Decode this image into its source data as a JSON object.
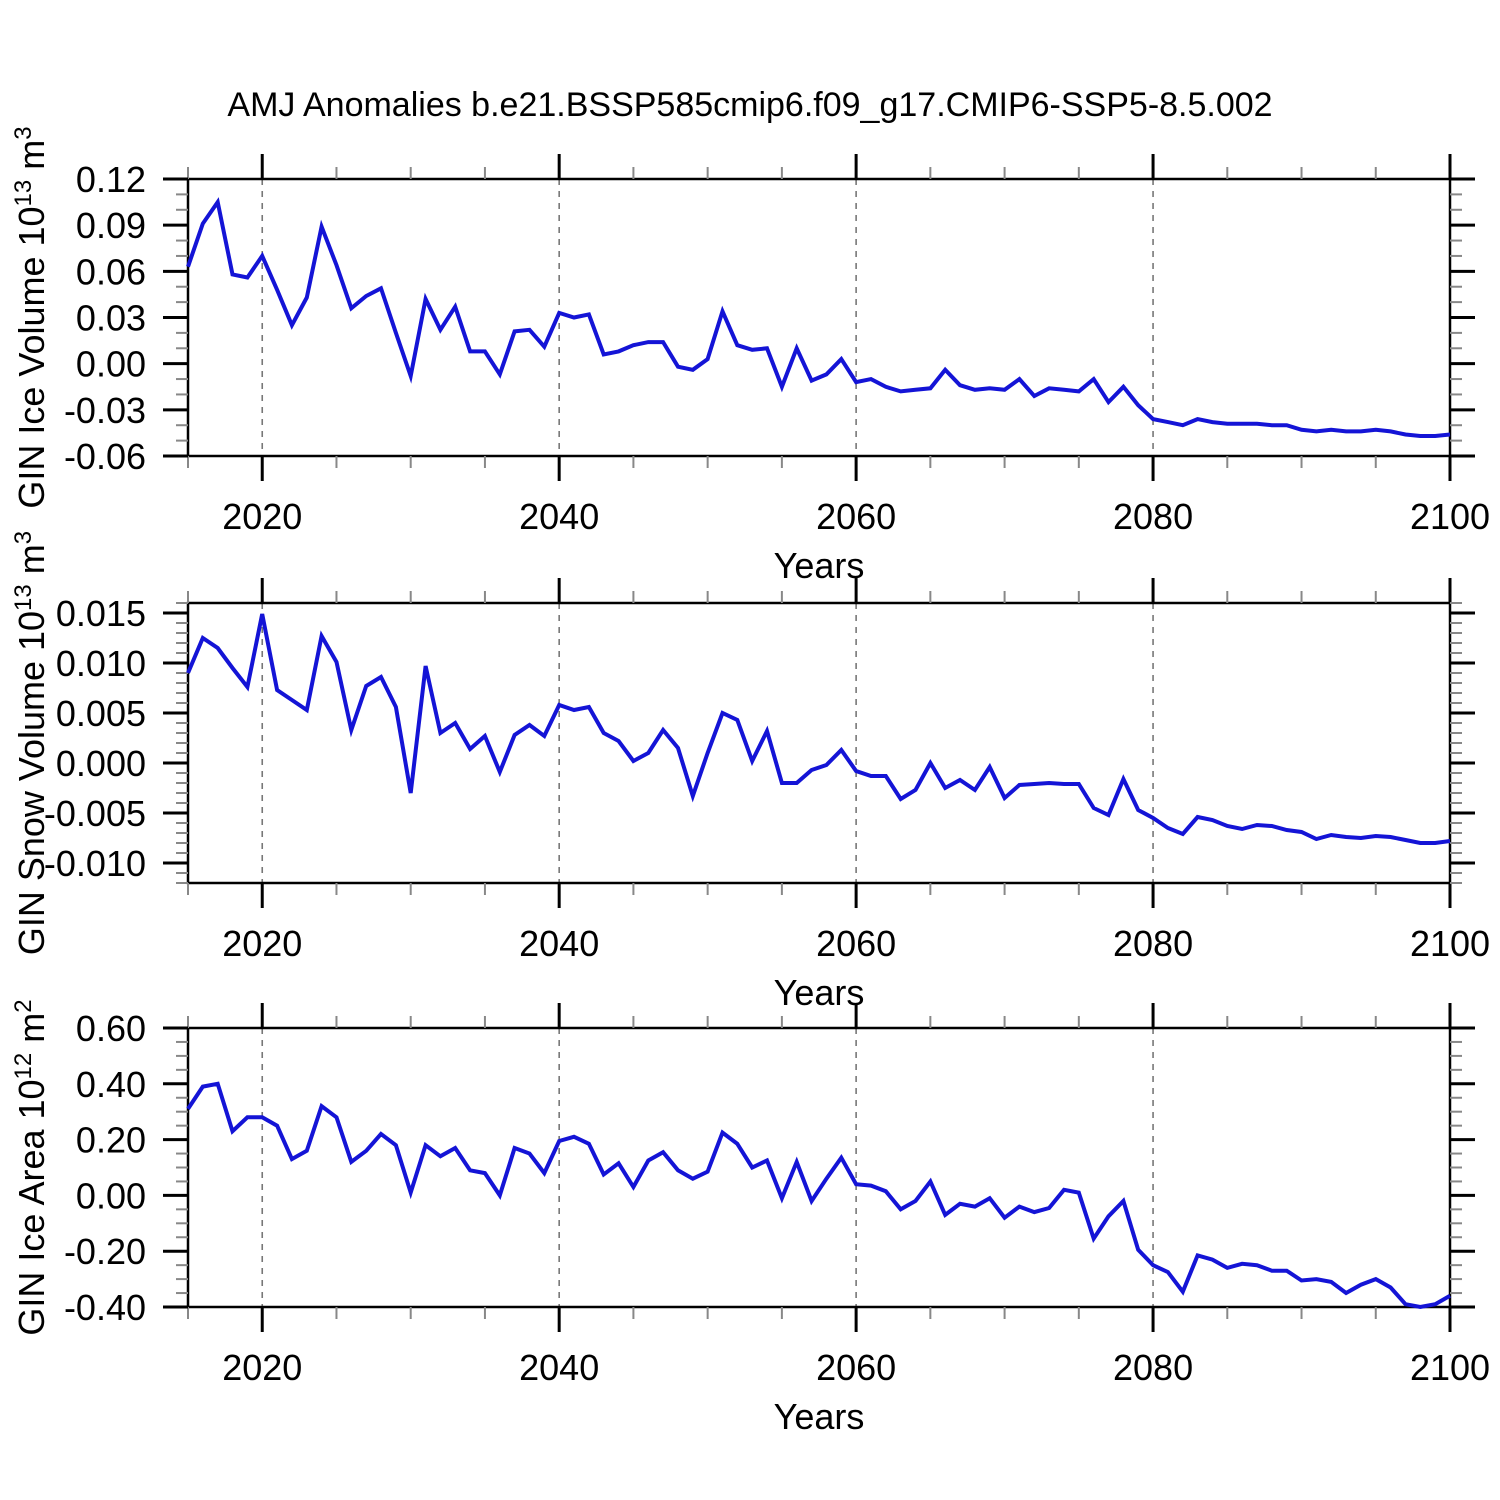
{
  "title": "AMJ Anomalies b.e21.BSSP585cmip6.f09_g17.CMIP6-SSP5-8.5.002",
  "colors": {
    "line": "#1414d6",
    "gridline": "#777777",
    "major_tick": "#000000",
    "minor_tick": "#888888",
    "frame": "#000000",
    "text": "#000000"
  },
  "x_axis": {
    "label": "Years",
    "lim": [
      2015,
      2100
    ],
    "major_ticks": [
      2020,
      2040,
      2060,
      2080,
      2100
    ],
    "major_tick_labels": [
      "2020",
      "2040",
      "2060",
      "2080",
      "2100"
    ],
    "minor_step": 5,
    "grid_years": [
      2020,
      2040,
      2060,
      2080
    ]
  },
  "chart_data": [
    {
      "type": "line",
      "panel": "ice-volume",
      "ylabel": "GIN Ice Volume 10^13 m^3",
      "ylabel_parts": [
        [
          "GIN Ice Volume 10",
          0
        ],
        [
          "13",
          1
        ],
        [
          " m",
          0
        ],
        [
          "3",
          1
        ]
      ],
      "xlabel": "Years",
      "ylim": [
        -0.06,
        0.12
      ],
      "ytick_values": [
        0.12,
        0.09,
        0.06,
        0.03,
        0.0,
        -0.03,
        -0.06
      ],
      "ytick_labels": [
        "0.12",
        "0.09",
        "0.06",
        "0.03",
        "0.00",
        "-0.03",
        "-0.06"
      ],
      "yminor_step": 0.01,
      "x_start": 2015,
      "x_end": 2100,
      "x_step": 1,
      "grid": "vertical-dashed",
      "legend": "none",
      "values": [
        0.063,
        0.091,
        0.105,
        0.058,
        0.056,
        0.07,
        0.048,
        0.025,
        0.043,
        0.089,
        0.064,
        0.036,
        0.044,
        0.049,
        0.02,
        -0.008,
        0.042,
        0.022,
        0.037,
        0.008,
        0.008,
        -0.007,
        0.021,
        0.022,
        0.011,
        0.033,
        0.03,
        0.032,
        0.006,
        0.008,
        0.012,
        0.014,
        0.014,
        -0.002,
        -0.004,
        0.003,
        0.034,
        0.012,
        0.009,
        0.01,
        -0.015,
        0.01,
        -0.011,
        -0.007,
        0.003,
        -0.012,
        -0.01,
        -0.015,
        -0.018,
        -0.017,
        -0.016,
        -0.004,
        -0.014,
        -0.017,
        -0.016,
        -0.017,
        -0.01,
        -0.021,
        -0.016,
        -0.017,
        -0.018,
        -0.01,
        -0.025,
        -0.015,
        -0.027,
        -0.036,
        -0.038,
        -0.04,
        -0.036,
        -0.038,
        -0.039,
        -0.039,
        -0.039,
        -0.04,
        -0.04,
        -0.043,
        -0.044,
        -0.043,
        -0.044,
        -0.044,
        -0.043,
        -0.044,
        -0.046,
        -0.047,
        -0.047,
        -0.046
      ]
    },
    {
      "type": "line",
      "panel": "snow-volume",
      "ylabel": "GIN Snow Volume 10^13 m^3",
      "ylabel_parts": [
        [
          "GIN Snow Volume 10",
          0
        ],
        [
          "13",
          1
        ],
        [
          " m",
          0
        ],
        [
          "3",
          1
        ]
      ],
      "xlabel": "Years",
      "ylim": [
        -0.012,
        0.016
      ],
      "ytick_values": [
        0.015,
        0.01,
        0.005,
        0.0,
        -0.005,
        -0.01
      ],
      "ytick_labels": [
        "0.015",
        "0.010",
        "0.005",
        "0.000",
        "-0.005",
        "-0.010"
      ],
      "yminor_step": 0.001,
      "x_start": 2015,
      "x_end": 2100,
      "x_step": 1,
      "grid": "vertical-dashed",
      "legend": "none",
      "values": [
        0.009,
        0.0125,
        0.0115,
        0.0095,
        0.0076,
        0.0149,
        0.0073,
        0.0063,
        0.0053,
        0.0127,
        0.0101,
        0.0033,
        0.0077,
        0.0086,
        0.0056,
        -0.003,
        0.0097,
        0.003,
        0.004,
        0.0014,
        0.0027,
        -0.0009,
        0.0028,
        0.0038,
        0.0027,
        0.0058,
        0.0053,
        0.0056,
        0.003,
        0.0022,
        0.0002,
        0.001,
        0.0033,
        0.0015,
        -0.0033,
        0.001,
        0.005,
        0.0043,
        0.0002,
        0.0032,
        -0.002,
        -0.002,
        -0.0007,
        -0.0002,
        0.0013,
        -0.0008,
        -0.0013,
        -0.0013,
        -0.0036,
        -0.0027,
        0.0,
        -0.0025,
        -0.0017,
        -0.0027,
        -0.0004,
        -0.0035,
        -0.0022,
        -0.0021,
        -0.002,
        -0.0021,
        -0.0021,
        -0.0045,
        -0.0052,
        -0.0016,
        -0.0047,
        -0.0055,
        -0.0065,
        -0.0071,
        -0.0054,
        -0.0057,
        -0.0063,
        -0.0066,
        -0.0062,
        -0.0063,
        -0.0067,
        -0.0069,
        -0.0076,
        -0.0072,
        -0.0074,
        -0.0075,
        -0.0073,
        -0.0074,
        -0.0077,
        -0.008,
        -0.008,
        -0.0078
      ]
    },
    {
      "type": "line",
      "panel": "ice-area",
      "ylabel": "GIN Ice Area 10^12 m^2",
      "ylabel_parts": [
        [
          "GIN Ice Area 10",
          0
        ],
        [
          "12",
          1
        ],
        [
          " m",
          0
        ],
        [
          "2",
          1
        ]
      ],
      "xlabel": "Years",
      "ylim": [
        -0.4,
        0.6
      ],
      "ytick_values": [
        0.6,
        0.4,
        0.2,
        0.0,
        -0.2,
        -0.4
      ],
      "ytick_labels": [
        "0.60",
        "0.40",
        "0.20",
        "0.00",
        "-0.20",
        "-0.40"
      ],
      "yminor_step": 0.05,
      "x_start": 2015,
      "x_end": 2100,
      "x_step": 1,
      "grid": "vertical-dashed",
      "legend": "none",
      "values": [
        0.31,
        0.39,
        0.4,
        0.23,
        0.28,
        0.28,
        0.25,
        0.13,
        0.16,
        0.32,
        0.28,
        0.12,
        0.16,
        0.22,
        0.18,
        0.01,
        0.18,
        0.14,
        0.17,
        0.09,
        0.08,
        0.0,
        0.17,
        0.15,
        0.08,
        0.195,
        0.21,
        0.185,
        0.075,
        0.115,
        0.03,
        0.125,
        0.155,
        0.09,
        0.06,
        0.085,
        0.225,
        0.185,
        0.1,
        0.125,
        -0.01,
        0.12,
        -0.02,
        0.06,
        0.135,
        0.04,
        0.035,
        0.015,
        -0.05,
        -0.02,
        0.05,
        -0.07,
        -0.03,
        -0.04,
        -0.01,
        -0.08,
        -0.04,
        -0.06,
        -0.045,
        0.02,
        0.01,
        -0.155,
        -0.075,
        -0.02,
        -0.195,
        -0.25,
        -0.275,
        -0.345,
        -0.215,
        -0.23,
        -0.26,
        -0.245,
        -0.25,
        -0.27,
        -0.27,
        -0.305,
        -0.3,
        -0.31,
        -0.35,
        -0.32,
        -0.3,
        -0.33,
        -0.39,
        -0.4,
        -0.39,
        -0.36
      ]
    }
  ]
}
